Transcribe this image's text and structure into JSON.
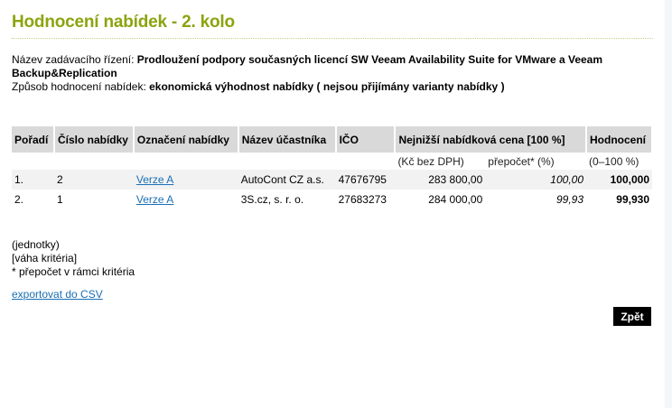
{
  "title": "Hodnocení nabídek - 2. kolo",
  "info": {
    "name_label": "Název zadávacího řízení:",
    "name_value": "Prodloužení podpory současných licencí SW Veeam Availability Suite for VMware a Veeam Backup&Replication",
    "method_label": "Způsob hodnocení nabídek:",
    "method_value": "ekonomická výhodnost nabídky ( nejsou přijímány varianty nabídky )"
  },
  "table": {
    "headers": [
      "Pořadí",
      "Číslo nabídky",
      "Označení nabídky",
      "Název účastníka",
      "IČO",
      "Nejnižší nabídková cena [100 %]",
      "Hodnocení"
    ],
    "subheaders": {
      "price": "(Kč bez DPH)",
      "recalc": "přepočet* (%)",
      "score": "(0–100 %)"
    },
    "rows": [
      {
        "rank": "1.",
        "number": "2",
        "label": "Verze A",
        "name": "AutoCont CZ a.s.",
        "ico": "47676795",
        "price": "283 800,00",
        "recalc": "100,00",
        "score": "100,000"
      },
      {
        "rank": "2.",
        "number": "1",
        "label": "Verze A",
        "name": "3S.cz, s. r. o.",
        "ico": "27683273",
        "price": "284 000,00",
        "recalc": "99,93",
        "score": "99,930"
      }
    ]
  },
  "notes": [
    "(jednotky)",
    "[váha kritéria]",
    "* přepočet v rámci kritéria"
  ],
  "export_link": "exportovat do CSV",
  "back_button": "Zpět",
  "colors": {
    "title": "#8ba40f",
    "link": "#1a6fb5",
    "header_bg": "#d9d9d9"
  }
}
